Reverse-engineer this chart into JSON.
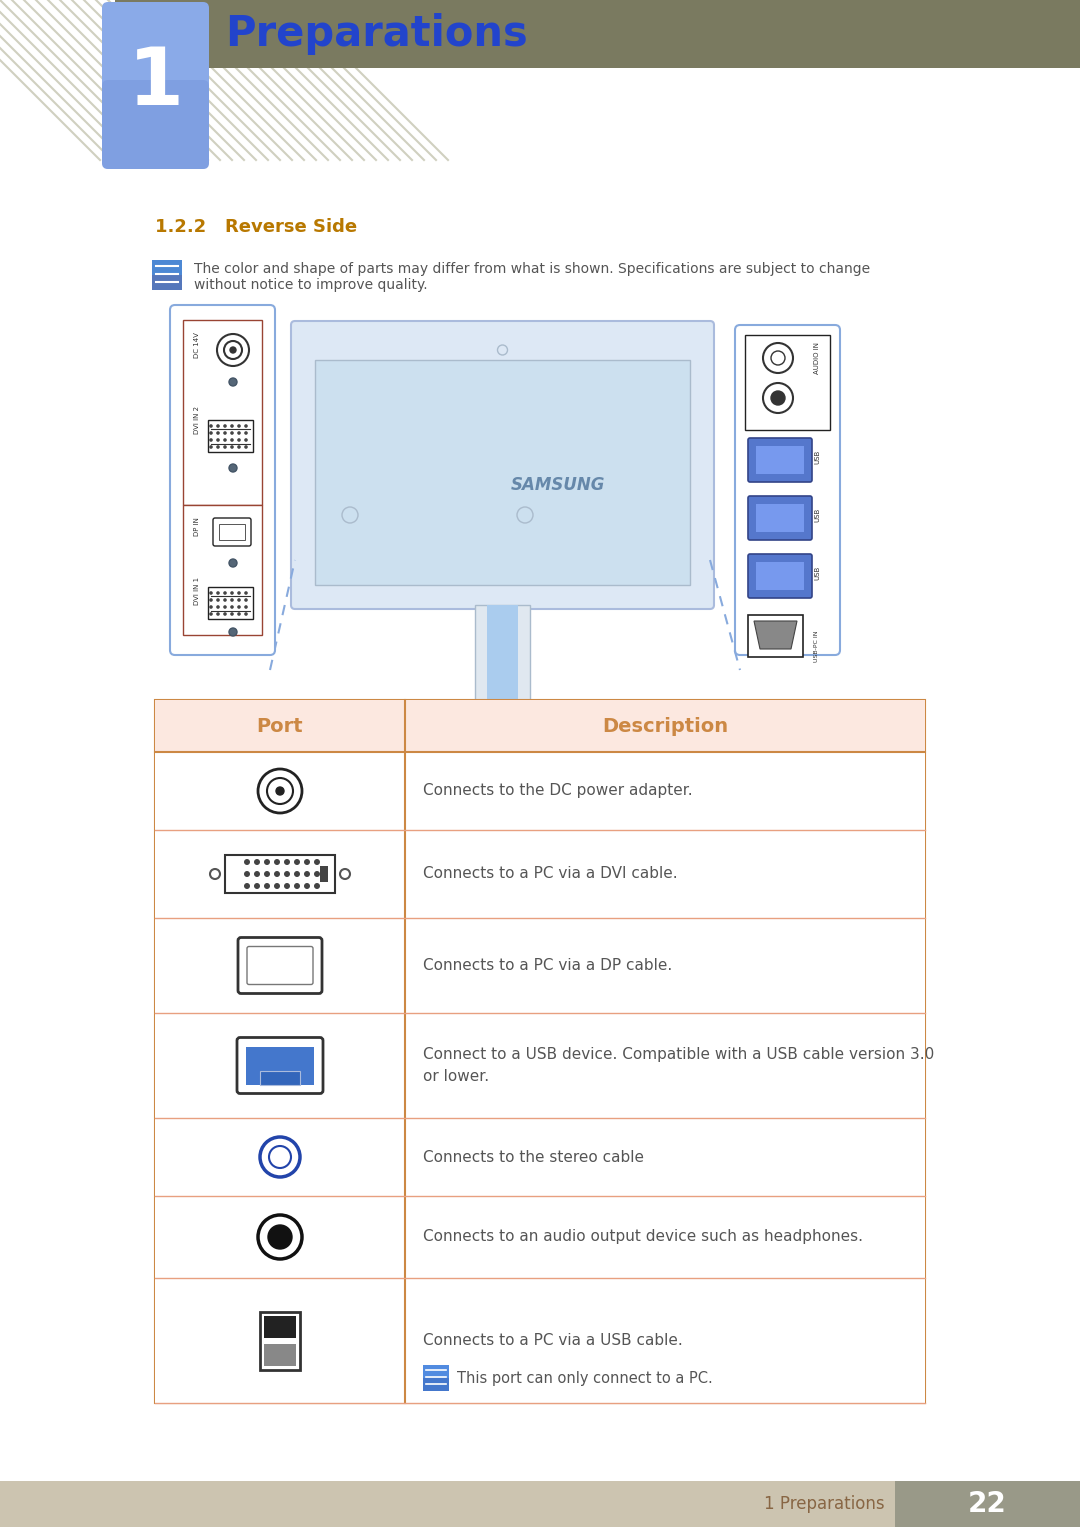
{
  "title": "Preparations",
  "chapter_num": "1",
  "section": "1.2.2   Reverse Side",
  "note_text_line1": "The color and shape of parts may differ from what is shown. Specifications are subject to change",
  "note_text_line2": "without notice to improve quality.",
  "header_bg": "#7a7a60",
  "chapter_box_color_top": "#8aaee8",
  "chapter_box_color_bot": "#6688cc",
  "title_text_color": "#2244cc",
  "section_color": "#b87800",
  "table_header_bg": "#fce8e0",
  "table_border_color": "#cc8844",
  "table_row_divider": "#e8a080",
  "table_header_text": "#cc8844",
  "table_desc_color": "#555555",
  "footer_bg": "#ccc4b0",
  "footer_text_color": "#886644",
  "footer_page_bg": "#999988",
  "footer_page_color": "#ffffff",
  "page_num": "22",
  "footer_label": "1 Preparations",
  "rows": [
    {
      "desc": "Connects to the DC power adapter."
    },
    {
      "desc": "Connects to a PC via a DVI cable."
    },
    {
      "desc": "Connects to a PC via a DP cable."
    },
    {
      "desc": "Connect to a USB device. Compatible with a USB cable version 3.0\nor lower."
    },
    {
      "desc": "Connects to the stereo cable"
    },
    {
      "desc": "Connects to an audio output device such as headphones."
    },
    {
      "desc": "Connects to a PC via a USB cable."
    }
  ],
  "bg_color": "#ffffff",
  "note_icon_color": "#5b8fd4",
  "monitor_blue": "#7799cc",
  "stripe_color": "#d0d0c0"
}
